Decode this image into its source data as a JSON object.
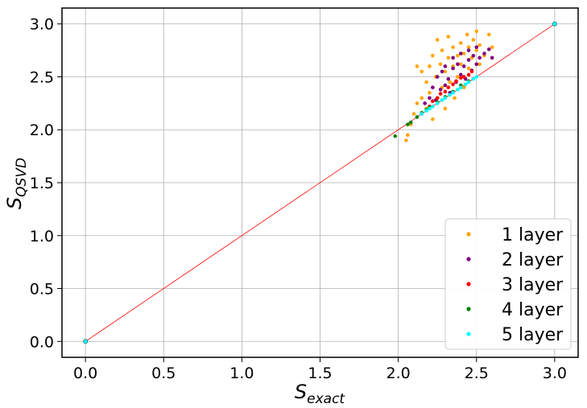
{
  "chart_data": {
    "type": "scatter",
    "xlabel": {
      "main": "S",
      "sub": "exact"
    },
    "ylabel": {
      "main": "S",
      "sub": "QSVD"
    },
    "xlim": [
      -0.15,
      3.15
    ],
    "ylim": [
      -0.15,
      3.15
    ],
    "xticks": [
      "0.0",
      "0.5",
      "1.0",
      "1.5",
      "2.0",
      "2.5",
      "3.0"
    ],
    "xtick_values": [
      0,
      0.5,
      1.0,
      1.5,
      2.0,
      2.5,
      3.0
    ],
    "yticks": [
      "0.0",
      "0.5",
      "1.0",
      "1.5",
      "2.0",
      "2.5",
      "3.0"
    ],
    "ytick_values": [
      0,
      0.5,
      1.0,
      1.5,
      2.0,
      2.5,
      3.0
    ],
    "grid": true,
    "legend_position": "bottom-right",
    "reference_line": {
      "x": [
        0,
        3
      ],
      "y": [
        0,
        3
      ],
      "color": "#ff0000"
    },
    "series": [
      {
        "name": "1 layer",
        "color": "#ffa500",
        "points": [
          [
            2.05,
            1.9
          ],
          [
            2.06,
            1.95
          ],
          [
            2.08,
            2.05
          ],
          [
            2.1,
            2.15
          ],
          [
            2.12,
            2.25
          ],
          [
            2.12,
            2.6
          ],
          [
            2.15,
            2.3
          ],
          [
            2.15,
            2.55
          ],
          [
            2.18,
            2.2
          ],
          [
            2.18,
            2.45
          ],
          [
            2.2,
            2.35
          ],
          [
            2.2,
            2.6
          ],
          [
            2.22,
            2.1
          ],
          [
            2.22,
            2.7
          ],
          [
            2.24,
            2.5
          ],
          [
            2.25,
            2.3
          ],
          [
            2.25,
            2.85
          ],
          [
            2.27,
            2.62
          ],
          [
            2.28,
            2.4
          ],
          [
            2.28,
            2.75
          ],
          [
            2.3,
            2.55
          ],
          [
            2.3,
            2.2
          ],
          [
            2.32,
            2.68
          ],
          [
            2.32,
            2.88
          ],
          [
            2.33,
            2.45
          ],
          [
            2.35,
            2.6
          ],
          [
            2.35,
            2.78
          ],
          [
            2.36,
            2.3
          ],
          [
            2.38,
            2.7
          ],
          [
            2.38,
            2.5
          ],
          [
            2.4,
            2.82
          ],
          [
            2.4,
            2.62
          ],
          [
            2.42,
            2.4
          ],
          [
            2.42,
            2.72
          ],
          [
            2.44,
            2.9
          ],
          [
            2.45,
            2.58
          ],
          [
            2.45,
            2.78
          ],
          [
            2.47,
            2.68
          ],
          [
            2.48,
            2.85
          ],
          [
            2.5,
            2.75
          ],
          [
            2.5,
            2.93
          ],
          [
            2.52,
            2.62
          ],
          [
            2.52,
            2.8
          ],
          [
            2.55,
            2.7
          ],
          [
            2.58,
            2.9
          ],
          [
            2.6,
            2.78
          ]
        ]
      },
      {
        "name": "2 layer",
        "color": "#800080",
        "points": [
          [
            2.15,
            2.15
          ],
          [
            2.17,
            2.25
          ],
          [
            2.2,
            2.3
          ],
          [
            2.22,
            2.4
          ],
          [
            2.24,
            2.28
          ],
          [
            2.25,
            2.5
          ],
          [
            2.27,
            2.38
          ],
          [
            2.28,
            2.55
          ],
          [
            2.3,
            2.42
          ],
          [
            2.3,
            2.6
          ],
          [
            2.32,
            2.48
          ],
          [
            2.33,
            2.35
          ],
          [
            2.35,
            2.58
          ],
          [
            2.35,
            2.68
          ],
          [
            2.37,
            2.45
          ],
          [
            2.38,
            2.62
          ],
          [
            2.4,
            2.52
          ],
          [
            2.4,
            2.72
          ],
          [
            2.42,
            2.6
          ],
          [
            2.43,
            2.48
          ],
          [
            2.45,
            2.66
          ],
          [
            2.45,
            2.75
          ],
          [
            2.47,
            2.56
          ],
          [
            2.48,
            2.7
          ],
          [
            2.5,
            2.62
          ],
          [
            2.5,
            2.78
          ],
          [
            2.52,
            2.68
          ],
          [
            2.55,
            2.72
          ],
          [
            2.58,
            2.76
          ],
          [
            2.6,
            2.68
          ]
        ]
      },
      {
        "name": "3 layer",
        "color": "#ff0000",
        "points": [
          [
            2.2,
            2.22
          ],
          [
            2.22,
            2.27
          ],
          [
            2.25,
            2.3
          ],
          [
            2.27,
            2.34
          ],
          [
            2.3,
            2.36
          ],
          [
            2.32,
            2.4
          ],
          [
            2.35,
            2.43
          ],
          [
            2.37,
            2.46
          ],
          [
            2.4,
            2.49
          ],
          [
            2.42,
            2.5
          ],
          [
            2.45,
            2.52
          ],
          [
            2.47,
            2.55
          ]
        ]
      },
      {
        "name": "4 layer",
        "color": "#008000",
        "points": [
          [
            1.98,
            1.94
          ],
          [
            2.06,
            2.05
          ],
          [
            2.08,
            2.07
          ],
          [
            2.12,
            2.12
          ],
          [
            2.15,
            2.16
          ],
          [
            2.18,
            2.19
          ],
          [
            2.2,
            2.21
          ],
          [
            2.25,
            2.26
          ],
          [
            2.3,
            2.31
          ],
          [
            2.35,
            2.36
          ],
          [
            2.4,
            2.42
          ],
          [
            2.45,
            2.46
          ]
        ]
      },
      {
        "name": "5 layer",
        "color": "#00ffff",
        "points": [
          [
            0,
            0
          ],
          [
            3,
            3
          ],
          [
            2.15,
            2.15
          ],
          [
            2.18,
            2.18
          ],
          [
            2.2,
            2.2
          ],
          [
            2.22,
            2.22
          ],
          [
            2.25,
            2.25
          ],
          [
            2.28,
            2.28
          ],
          [
            2.3,
            2.3
          ],
          [
            2.33,
            2.33
          ],
          [
            2.35,
            2.35
          ],
          [
            2.38,
            2.38
          ],
          [
            2.4,
            2.4
          ],
          [
            2.43,
            2.43
          ],
          [
            2.45,
            2.45
          ],
          [
            2.48,
            2.48
          ],
          [
            2.5,
            2.5
          ]
        ]
      }
    ]
  }
}
